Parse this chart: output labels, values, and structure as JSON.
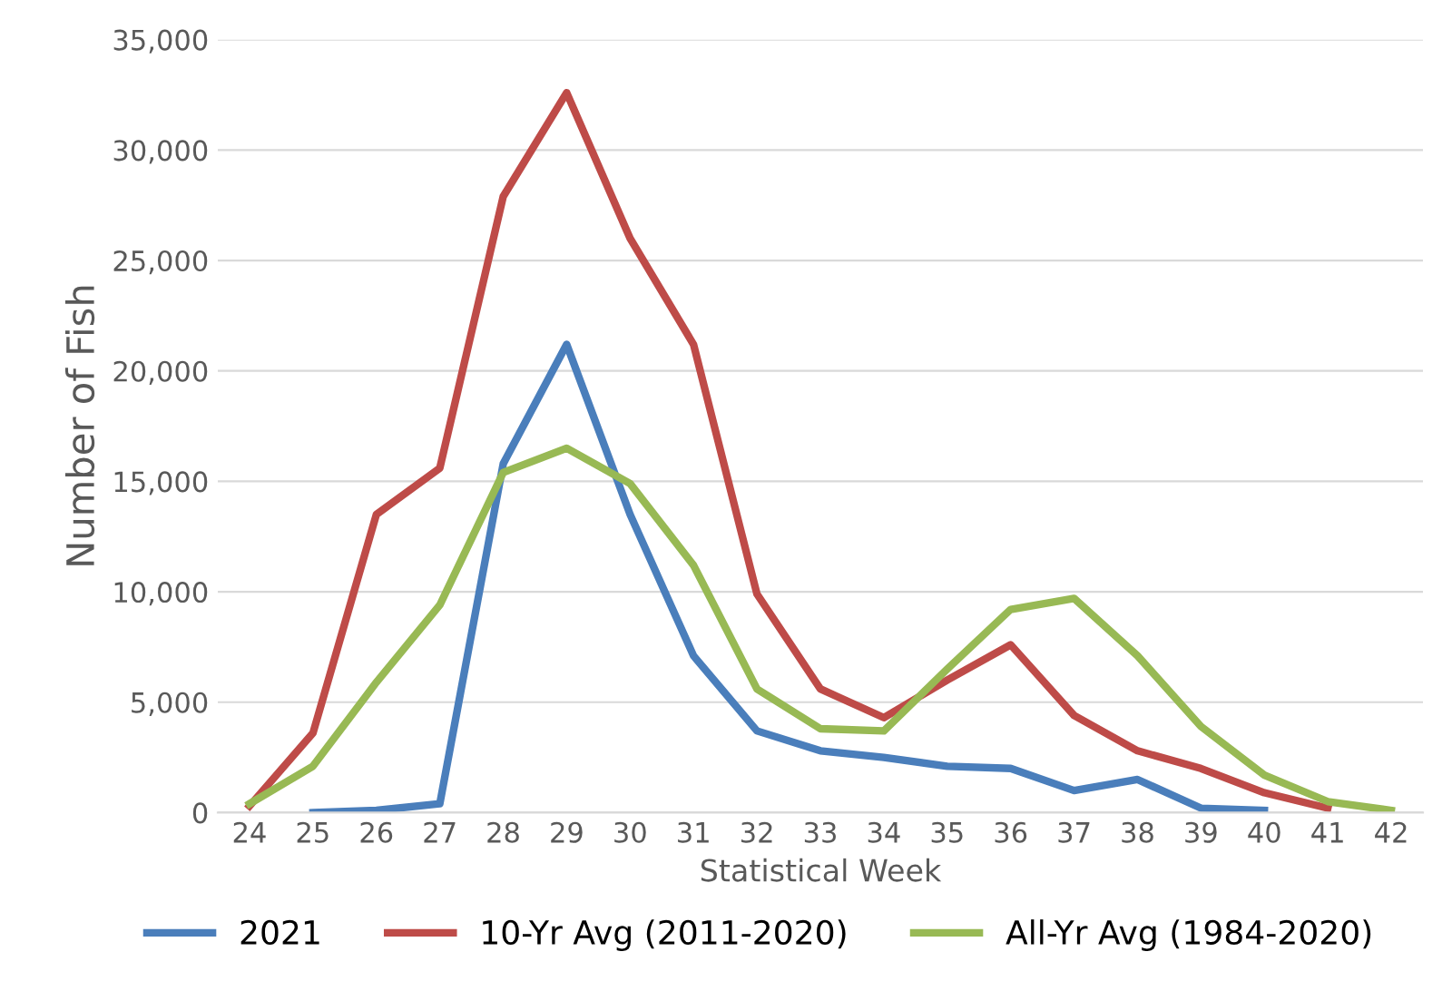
{
  "chart_data": {
    "type": "line",
    "xlabel": "Statistical Week",
    "ylabel": "Number of Fish",
    "categories": [
      "24",
      "25",
      "26",
      "27",
      "28",
      "29",
      "30",
      "31",
      "32",
      "33",
      "34",
      "35",
      "36",
      "37",
      "38",
      "39",
      "40",
      "41",
      "42"
    ],
    "series": [
      {
        "name": "2021",
        "color": "#4a7ebb",
        "values": [
          null,
          0,
          100,
          400,
          15800,
          21200,
          13500,
          7100,
          3700,
          2800,
          2500,
          2100,
          2000,
          1000,
          1500,
          200,
          100,
          null,
          null
        ]
      },
      {
        "name": "10-Yr Avg (2011-2020)",
        "color": "#be4b48",
        "values": [
          300,
          3600,
          13500,
          15600,
          27900,
          32600,
          26000,
          21200,
          9900,
          5600,
          4300,
          6000,
          7600,
          4400,
          2800,
          2000,
          900,
          200,
          null
        ]
      },
      {
        "name": "All-Yr Avg (1984-2020)",
        "color": "#98b954",
        "values": [
          400,
          2100,
          5900,
          9400,
          15400,
          16500,
          14900,
          11200,
          5600,
          3800,
          3700,
          6500,
          9200,
          9700,
          7100,
          3900,
          1700,
          500,
          100
        ]
      }
    ],
    "ylim": [
      0,
      35000
    ],
    "yticks": [
      0,
      {
        "value": 5000,
        "label": "5,000"
      },
      {
        "value": 10000,
        "label": "10,000"
      },
      {
        "value": 15000,
        "label": "15,000"
      },
      {
        "value": 20000,
        "label": "20,000"
      },
      {
        "value": 25000,
        "label": "25,000"
      },
      {
        "value": 30000,
        "label": "30,000"
      },
      {
        "value": 35000,
        "label": "35,000"
      }
    ],
    "grid": "y",
    "legend": "bottom",
    "marker": "none",
    "line_style": "solid"
  }
}
